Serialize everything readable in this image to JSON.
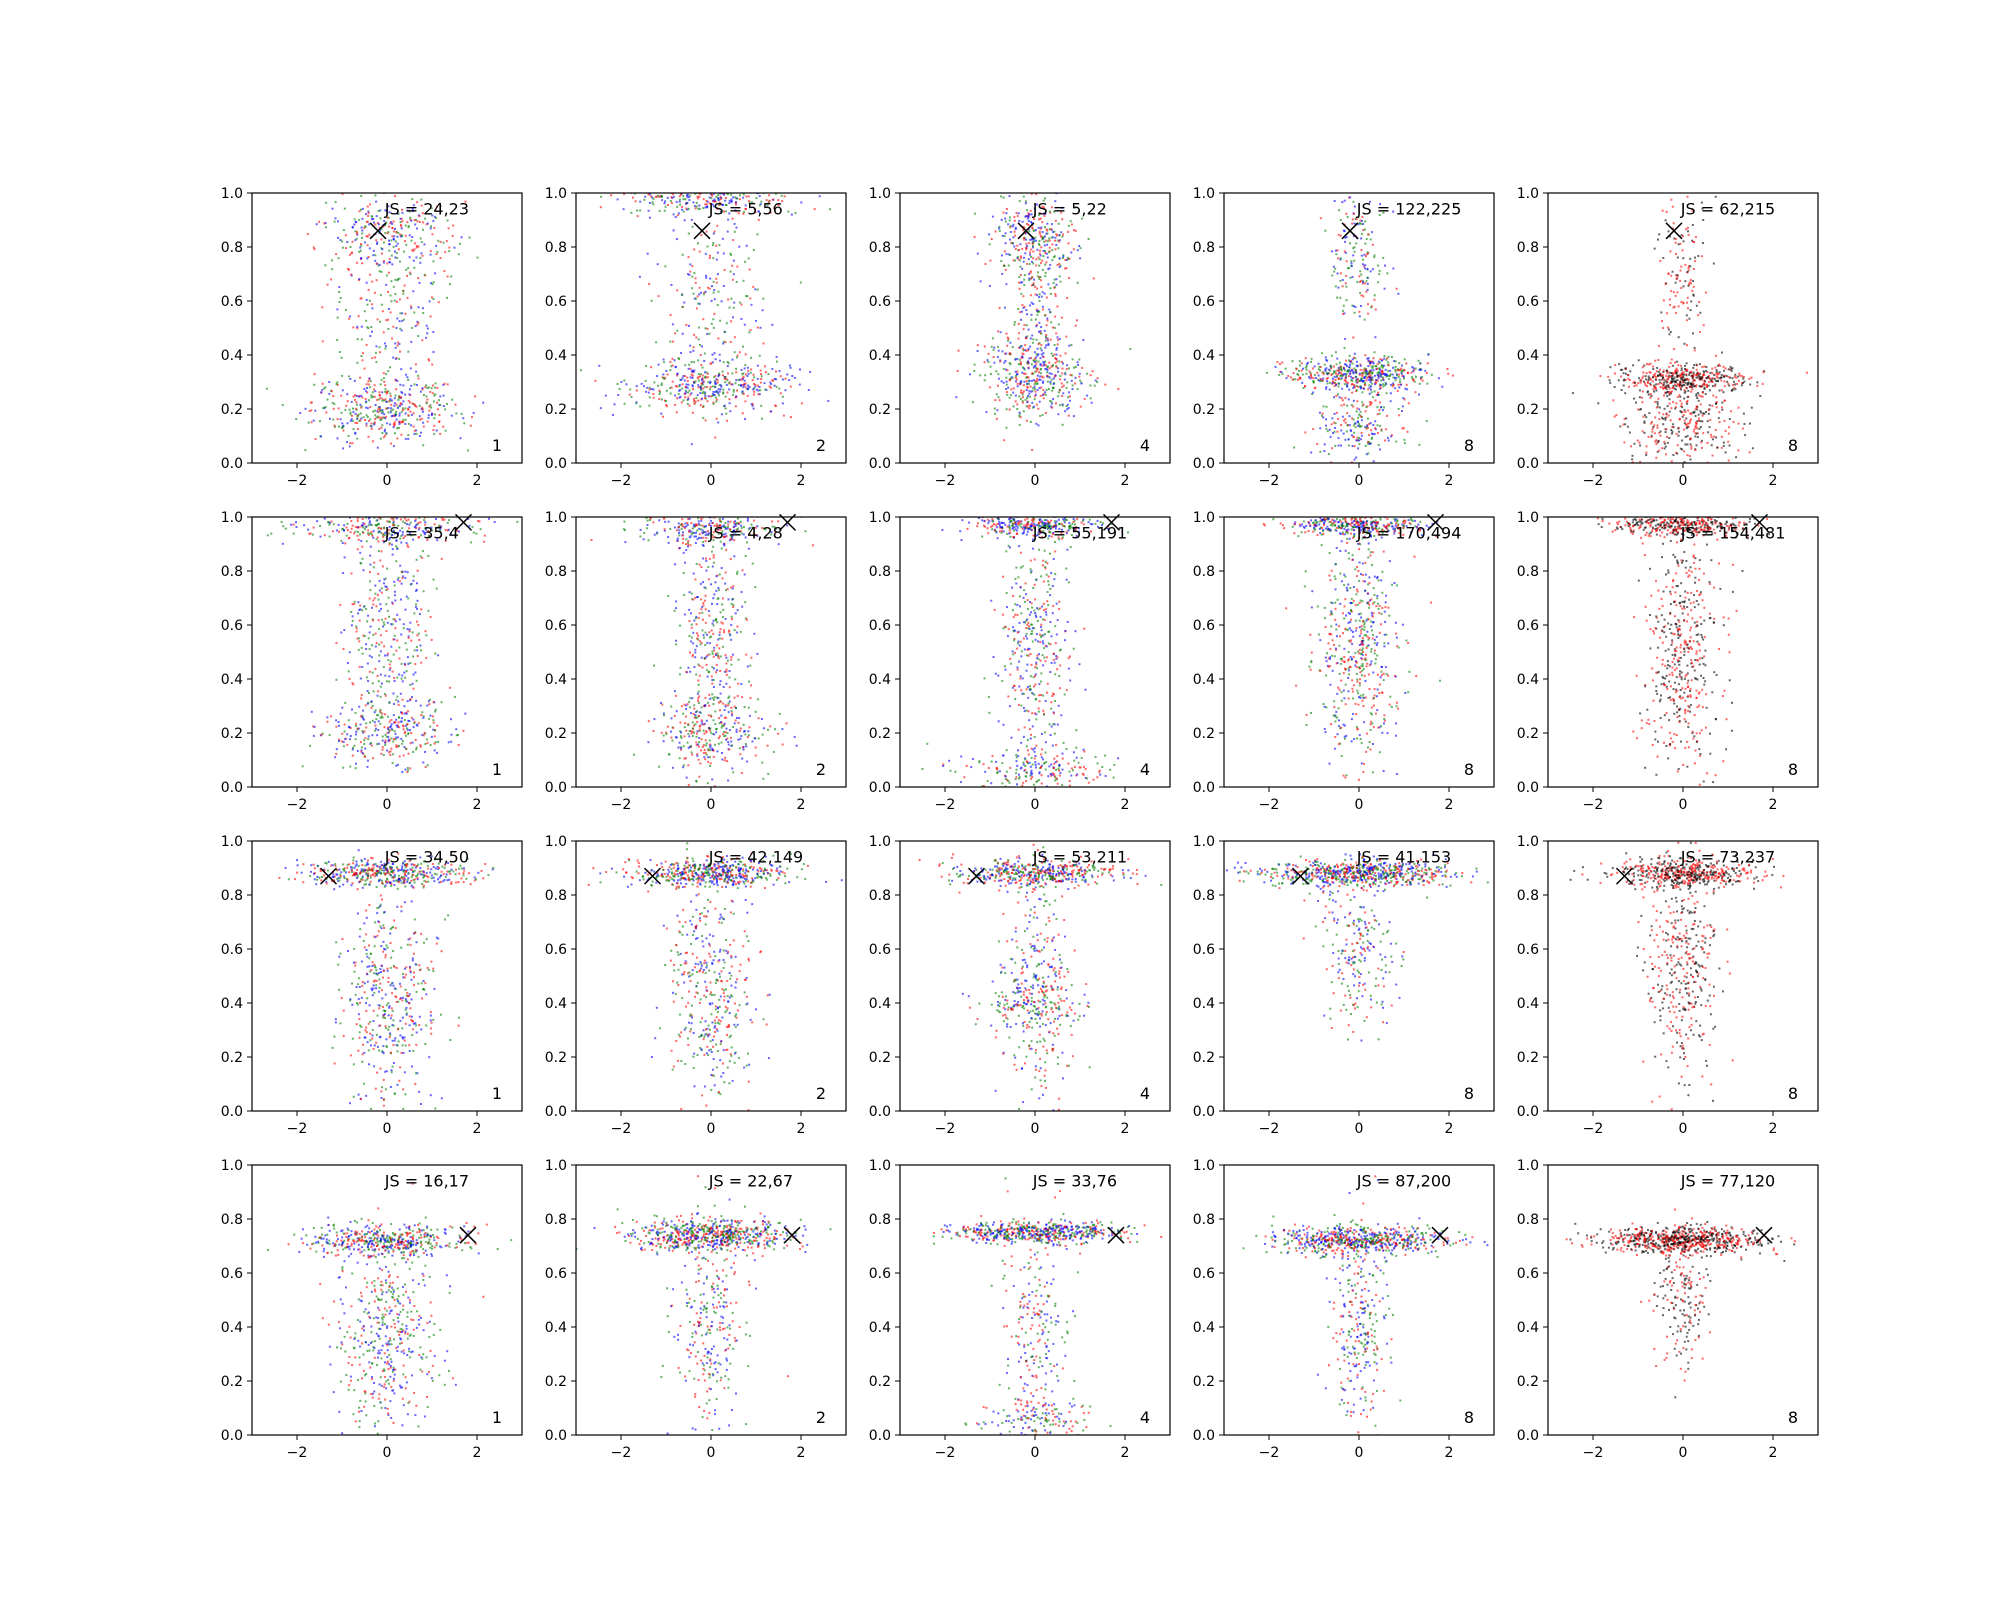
{
  "figure": {
    "rows": 4,
    "columns": 5,
    "point_colors": {
      "blue": "#0000ff",
      "green": "#008000",
      "red": "#ff0000",
      "black": "#000000"
    },
    "marker": "x"
  },
  "chart_data": [
    {
      "type": "scatter",
      "row": 1,
      "col": 1,
      "annotation": "JS = 24,23",
      "corner_label": "1",
      "marker": {
        "x": -0.2,
        "y": 0.86
      },
      "series_colors": [
        "blue",
        "green",
        "red"
      ],
      "xlim": [
        -3,
        3
      ],
      "ylim": [
        0,
        1
      ],
      "xticks": [
        -2,
        0,
        2
      ],
      "yticks": [
        "0.0",
        "0.2",
        "0.4",
        "0.6",
        "0.8",
        "1.0"
      ],
      "clusters": [
        {
          "y": 0.2,
          "sy": 0.06,
          "sx": 1.0,
          "w": 0.45
        },
        {
          "y": 0.85,
          "sy": 0.08,
          "sx": 0.9,
          "w": 0.3
        },
        {
          "y": 0.55,
          "sy": 0.2,
          "sx": 0.8,
          "w": 0.25
        }
      ]
    },
    {
      "type": "scatter",
      "row": 1,
      "col": 2,
      "annotation": "JS = 5,56",
      "corner_label": "2",
      "marker": {
        "x": -0.2,
        "y": 0.86
      },
      "series_colors": [
        "blue",
        "green",
        "red"
      ],
      "xlim": [
        -3,
        3
      ],
      "ylim": [
        0,
        1
      ],
      "xticks": [
        -2,
        0,
        2
      ],
      "yticks": [
        "0.0",
        "0.2",
        "0.4",
        "0.6",
        "0.8",
        "1.0"
      ],
      "clusters": [
        {
          "y": 0.28,
          "sy": 0.05,
          "sx": 1.2,
          "w": 0.45
        },
        {
          "y": 0.98,
          "sy": 0.03,
          "sx": 1.2,
          "w": 0.3
        },
        {
          "y": 0.6,
          "sy": 0.2,
          "sx": 0.7,
          "w": 0.25
        }
      ]
    },
    {
      "type": "scatter",
      "row": 1,
      "col": 3,
      "annotation": "JS = 5,22",
      "corner_label": "4",
      "marker": {
        "x": -0.2,
        "y": 0.86
      },
      "series_colors": [
        "blue",
        "green",
        "red"
      ],
      "xlim": [
        -3,
        3
      ],
      "ylim": [
        0,
        1
      ],
      "xticks": [
        -2,
        0,
        2
      ],
      "yticks": [
        "0.0",
        "0.2",
        "0.4",
        "0.6",
        "0.8",
        "1.0"
      ],
      "clusters": [
        {
          "y": 0.32,
          "sy": 0.08,
          "sx": 0.7,
          "w": 0.45
        },
        {
          "y": 0.85,
          "sy": 0.08,
          "sx": 0.6,
          "w": 0.3
        },
        {
          "y": 0.6,
          "sy": 0.2,
          "sx": 0.5,
          "w": 0.25
        }
      ]
    },
    {
      "type": "scatter",
      "row": 1,
      "col": 4,
      "annotation": "JS = 122,225",
      "corner_label": "8",
      "marker": {
        "x": -0.2,
        "y": 0.86
      },
      "series_colors": [
        "blue",
        "green",
        "red"
      ],
      "xlim": [
        -3,
        3
      ],
      "ylim": [
        0,
        1
      ],
      "xticks": [
        -2,
        0,
        2
      ],
      "yticks": [
        "0.0",
        "0.2",
        "0.4",
        "0.6",
        "0.8",
        "1.0"
      ],
      "clusters": [
        {
          "y": 0.33,
          "sy": 0.03,
          "sx": 1.0,
          "w": 0.55
        },
        {
          "y": 0.15,
          "sy": 0.08,
          "sx": 0.6,
          "w": 0.25
        },
        {
          "y": 0.75,
          "sy": 0.15,
          "sx": 0.4,
          "w": 0.2
        }
      ]
    },
    {
      "type": "scatter",
      "row": 1,
      "col": 5,
      "annotation": "JS = 62,215",
      "corner_label": "8",
      "marker": {
        "x": -0.2,
        "y": 0.86
      },
      "series_colors": [
        "black",
        "red"
      ],
      "xlim": [
        -3,
        3
      ],
      "ylim": [
        0,
        1
      ],
      "xticks": [
        -2,
        0,
        2
      ],
      "yticks": [
        "0.0",
        "0.2",
        "0.4",
        "0.6",
        "0.8",
        "1.0"
      ],
      "clusters": [
        {
          "y": 0.31,
          "sy": 0.03,
          "sx": 0.9,
          "w": 0.5
        },
        {
          "y": 0.15,
          "sy": 0.08,
          "sx": 0.8,
          "w": 0.35
        },
        {
          "y": 0.7,
          "sy": 0.15,
          "sx": 0.4,
          "w": 0.15
        }
      ]
    },
    {
      "type": "scatter",
      "row": 2,
      "col": 1,
      "annotation": "JS = 35,4",
      "corner_label": "1",
      "marker": {
        "x": 1.7,
        "y": 0.98
      },
      "series_colors": [
        "blue",
        "green",
        "red"
      ],
      "xlim": [
        -3,
        3
      ],
      "ylim": [
        0,
        1
      ],
      "xticks": [
        -2,
        0,
        2
      ],
      "yticks": [
        "0.0",
        "0.2",
        "0.4",
        "0.6",
        "0.8",
        "1.0"
      ],
      "clusters": [
        {
          "y": 0.96,
          "sy": 0.03,
          "sx": 1.2,
          "w": 0.3
        },
        {
          "y": 0.2,
          "sy": 0.06,
          "sx": 1.0,
          "w": 0.3
        },
        {
          "y": 0.55,
          "sy": 0.22,
          "sx": 0.6,
          "w": 0.4
        }
      ]
    },
    {
      "type": "scatter",
      "row": 2,
      "col": 2,
      "annotation": "JS = 4,28",
      "corner_label": "2",
      "marker": {
        "x": 1.7,
        "y": 0.98
      },
      "series_colors": [
        "blue",
        "green",
        "red"
      ],
      "xlim": [
        -3,
        3
      ],
      "ylim": [
        0,
        1
      ],
      "xticks": [
        -2,
        0,
        2
      ],
      "yticks": [
        "0.0",
        "0.2",
        "0.4",
        "0.6",
        "0.8",
        "1.0"
      ],
      "clusters": [
        {
          "y": 0.96,
          "sy": 0.03,
          "sx": 1.0,
          "w": 0.3
        },
        {
          "y": 0.2,
          "sy": 0.07,
          "sx": 0.8,
          "w": 0.3
        },
        {
          "y": 0.55,
          "sy": 0.22,
          "sx": 0.5,
          "w": 0.4
        }
      ]
    },
    {
      "type": "scatter",
      "row": 2,
      "col": 3,
      "annotation": "JS = 55,191",
      "corner_label": "4",
      "marker": {
        "x": 1.7,
        "y": 0.98
      },
      "series_colors": [
        "blue",
        "green",
        "red"
      ],
      "xlim": [
        -3,
        3
      ],
      "ylim": [
        0,
        1
      ],
      "xticks": [
        -2,
        0,
        2
      ],
      "yticks": [
        "0.0",
        "0.2",
        "0.4",
        "0.6",
        "0.8",
        "1.0"
      ],
      "clusters": [
        {
          "y": 0.97,
          "sy": 0.02,
          "sx": 0.9,
          "w": 0.35
        },
        {
          "y": 0.06,
          "sy": 0.04,
          "sx": 1.1,
          "w": 0.2
        },
        {
          "y": 0.5,
          "sy": 0.25,
          "sx": 0.5,
          "w": 0.45
        }
      ]
    },
    {
      "type": "scatter",
      "row": 2,
      "col": 4,
      "annotation": "JS = 170,494",
      "corner_label": "8",
      "marker": {
        "x": 1.7,
        "y": 0.98
      },
      "series_colors": [
        "blue",
        "green",
        "red"
      ],
      "xlim": [
        -3,
        3
      ],
      "ylim": [
        0,
        1
      ],
      "xticks": [
        -2,
        0,
        2
      ],
      "yticks": [
        "0.0",
        "0.2",
        "0.4",
        "0.6",
        "0.8",
        "1.0"
      ],
      "clusters": [
        {
          "y": 0.97,
          "sy": 0.02,
          "sx": 0.9,
          "w": 0.4
        },
        {
          "y": 0.55,
          "sy": 0.22,
          "sx": 0.5,
          "w": 0.45
        },
        {
          "y": 0.5,
          "sy": 0.25,
          "sx": 0.8,
          "w": 0.15
        }
      ]
    },
    {
      "type": "scatter",
      "row": 2,
      "col": 5,
      "annotation": "JS = 154,481",
      "corner_label": "8",
      "marker": {
        "x": 1.7,
        "y": 0.98
      },
      "series_colors": [
        "black",
        "red"
      ],
      "xlim": [
        -3,
        3
      ],
      "ylim": [
        0,
        1
      ],
      "xticks": [
        -2,
        0,
        2
      ],
      "yticks": [
        "0.0",
        "0.2",
        "0.4",
        "0.6",
        "0.8",
        "1.0"
      ],
      "clusters": [
        {
          "y": 0.97,
          "sy": 0.02,
          "sx": 1.0,
          "w": 0.45
        },
        {
          "y": 0.5,
          "sy": 0.25,
          "sx": 0.5,
          "w": 0.55
        }
      ]
    },
    {
      "type": "scatter",
      "row": 3,
      "col": 1,
      "annotation": "JS = 34,50",
      "corner_label": "1",
      "marker": {
        "x": -1.3,
        "y": 0.87
      },
      "series_colors": [
        "blue",
        "green",
        "red"
      ],
      "xlim": [
        -3,
        3
      ],
      "ylim": [
        0,
        1
      ],
      "xticks": [
        -2,
        0,
        2
      ],
      "yticks": [
        "0.0",
        "0.2",
        "0.4",
        "0.6",
        "0.8",
        "1.0"
      ],
      "clusters": [
        {
          "y": 0.88,
          "sy": 0.025,
          "sx": 1.1,
          "w": 0.5
        },
        {
          "y": 0.4,
          "sy": 0.2,
          "sx": 0.7,
          "w": 0.5
        }
      ]
    },
    {
      "type": "scatter",
      "row": 3,
      "col": 2,
      "annotation": "JS = 42,149",
      "corner_label": "2",
      "marker": {
        "x": -1.3,
        "y": 0.87
      },
      "series_colors": [
        "blue",
        "green",
        "red"
      ],
      "xlim": [
        -3,
        3
      ],
      "ylim": [
        0,
        1
      ],
      "xticks": [
        -2,
        0,
        2
      ],
      "yticks": [
        "0.0",
        "0.2",
        "0.4",
        "0.6",
        "0.8",
        "1.0"
      ],
      "clusters": [
        {
          "y": 0.88,
          "sy": 0.025,
          "sx": 1.1,
          "w": 0.55
        },
        {
          "y": 0.45,
          "sy": 0.22,
          "sx": 0.6,
          "w": 0.45
        }
      ]
    },
    {
      "type": "scatter",
      "row": 3,
      "col": 3,
      "annotation": "JS = 53,211",
      "corner_label": "4",
      "marker": {
        "x": -1.3,
        "y": 0.87
      },
      "series_colors": [
        "blue",
        "green",
        "red"
      ],
      "xlim": [
        -3,
        3
      ],
      "ylim": [
        0,
        1
      ],
      "xticks": [
        -2,
        0,
        2
      ],
      "yticks": [
        "0.0",
        "0.2",
        "0.4",
        "0.6",
        "0.8",
        "1.0"
      ],
      "clusters": [
        {
          "y": 0.88,
          "sy": 0.025,
          "sx": 1.1,
          "w": 0.5
        },
        {
          "y": 0.4,
          "sy": 0.05,
          "sx": 0.8,
          "w": 0.2
        },
        {
          "y": 0.5,
          "sy": 0.25,
          "sx": 0.5,
          "w": 0.3
        }
      ]
    },
    {
      "type": "scatter",
      "row": 3,
      "col": 4,
      "annotation": "JS = 41,153",
      "corner_label": "8",
      "marker": {
        "x": -1.3,
        "y": 0.87
      },
      "series_colors": [
        "blue",
        "green",
        "red"
      ],
      "xlim": [
        -3,
        3
      ],
      "ylim": [
        0,
        1
      ],
      "xticks": [
        -2,
        0,
        2
      ],
      "yticks": [
        "0.0",
        "0.2",
        "0.4",
        "0.6",
        "0.8",
        "1.0"
      ],
      "clusters": [
        {
          "y": 0.88,
          "sy": 0.025,
          "sx": 1.3,
          "w": 0.75
        },
        {
          "y": 0.6,
          "sy": 0.15,
          "sx": 0.5,
          "w": 0.25
        }
      ]
    },
    {
      "type": "scatter",
      "row": 3,
      "col": 5,
      "annotation": "JS = 73,237",
      "corner_label": "8",
      "marker": {
        "x": -1.3,
        "y": 0.87
      },
      "series_colors": [
        "black",
        "red"
      ],
      "xlim": [
        -3,
        3
      ],
      "ylim": [
        0,
        1
      ],
      "xticks": [
        -2,
        0,
        2
      ],
      "yticks": [
        "0.0",
        "0.2",
        "0.4",
        "0.6",
        "0.8",
        "1.0"
      ],
      "clusters": [
        {
          "y": 0.88,
          "sy": 0.025,
          "sx": 1.0,
          "w": 0.55
        },
        {
          "y": 0.55,
          "sy": 0.2,
          "sx": 0.5,
          "w": 0.45
        }
      ]
    },
    {
      "type": "scatter",
      "row": 4,
      "col": 1,
      "annotation": "JS = 16,17",
      "corner_label": "1",
      "marker": {
        "x": 1.8,
        "y": 0.74
      },
      "series_colors": [
        "blue",
        "green",
        "red"
      ],
      "xlim": [
        -3,
        3
      ],
      "ylim": [
        0,
        1
      ],
      "xticks": [
        -2,
        0,
        2
      ],
      "yticks": [
        "0.0",
        "0.2",
        "0.4",
        "0.6",
        "0.8",
        "1.0"
      ],
      "clusters": [
        {
          "y": 0.72,
          "sy": 0.03,
          "sx": 1.1,
          "w": 0.5
        },
        {
          "y": 0.35,
          "sy": 0.2,
          "sx": 0.7,
          "w": 0.5
        }
      ]
    },
    {
      "type": "scatter",
      "row": 4,
      "col": 2,
      "annotation": "JS = 22,67",
      "corner_label": "2",
      "marker": {
        "x": 1.8,
        "y": 0.74
      },
      "series_colors": [
        "blue",
        "green",
        "red"
      ],
      "xlim": [
        -3,
        3
      ],
      "ylim": [
        0,
        1
      ],
      "xticks": [
        -2,
        0,
        2
      ],
      "yticks": [
        "0.0",
        "0.2",
        "0.4",
        "0.6",
        "0.8",
        "1.0"
      ],
      "clusters": [
        {
          "y": 0.74,
          "sy": 0.03,
          "sx": 1.1,
          "w": 0.7
        },
        {
          "y": 0.4,
          "sy": 0.2,
          "sx": 0.5,
          "w": 0.3
        }
      ]
    },
    {
      "type": "scatter",
      "row": 4,
      "col": 3,
      "annotation": "JS = 33,76",
      "corner_label": "4",
      "marker": {
        "x": 1.8,
        "y": 0.74
      },
      "series_colors": [
        "blue",
        "green",
        "red"
      ],
      "xlim": [
        -3,
        3
      ],
      "ylim": [
        0,
        1
      ],
      "xticks": [
        -2,
        0,
        2
      ],
      "yticks": [
        "0.0",
        "0.2",
        "0.4",
        "0.6",
        "0.8",
        "1.0"
      ],
      "clusters": [
        {
          "y": 0.75,
          "sy": 0.02,
          "sx": 1.2,
          "w": 0.6
        },
        {
          "y": 0.05,
          "sy": 0.04,
          "sx": 0.8,
          "w": 0.15
        },
        {
          "y": 0.4,
          "sy": 0.2,
          "sx": 0.5,
          "w": 0.25
        }
      ]
    },
    {
      "type": "scatter",
      "row": 4,
      "col": 4,
      "annotation": "JS = 87,200",
      "corner_label": "8",
      "marker": {
        "x": 1.8,
        "y": 0.74
      },
      "series_colors": [
        "blue",
        "green",
        "red"
      ],
      "xlim": [
        -3,
        3
      ],
      "ylim": [
        0,
        1
      ],
      "xticks": [
        -2,
        0,
        2
      ],
      "yticks": [
        "0.0",
        "0.2",
        "0.4",
        "0.6",
        "0.8",
        "1.0"
      ],
      "clusters": [
        {
          "y": 0.72,
          "sy": 0.025,
          "sx": 1.2,
          "w": 0.7
        },
        {
          "y": 0.4,
          "sy": 0.2,
          "sx": 0.4,
          "w": 0.3
        }
      ]
    },
    {
      "type": "scatter",
      "row": 4,
      "col": 5,
      "annotation": "JS = 77,120",
      "corner_label": "8",
      "marker": {
        "x": 1.8,
        "y": 0.74
      },
      "series_colors": [
        "black",
        "red"
      ],
      "xlim": [
        -3,
        3
      ],
      "ylim": [
        0,
        1
      ],
      "xticks": [
        -2,
        0,
        2
      ],
      "yticks": [
        "0.0",
        "0.2",
        "0.4",
        "0.6",
        "0.8",
        "1.0"
      ],
      "clusters": [
        {
          "y": 0.72,
          "sy": 0.025,
          "sx": 1.1,
          "w": 0.8
        },
        {
          "y": 0.5,
          "sy": 0.12,
          "sx": 0.4,
          "w": 0.2
        }
      ]
    }
  ]
}
